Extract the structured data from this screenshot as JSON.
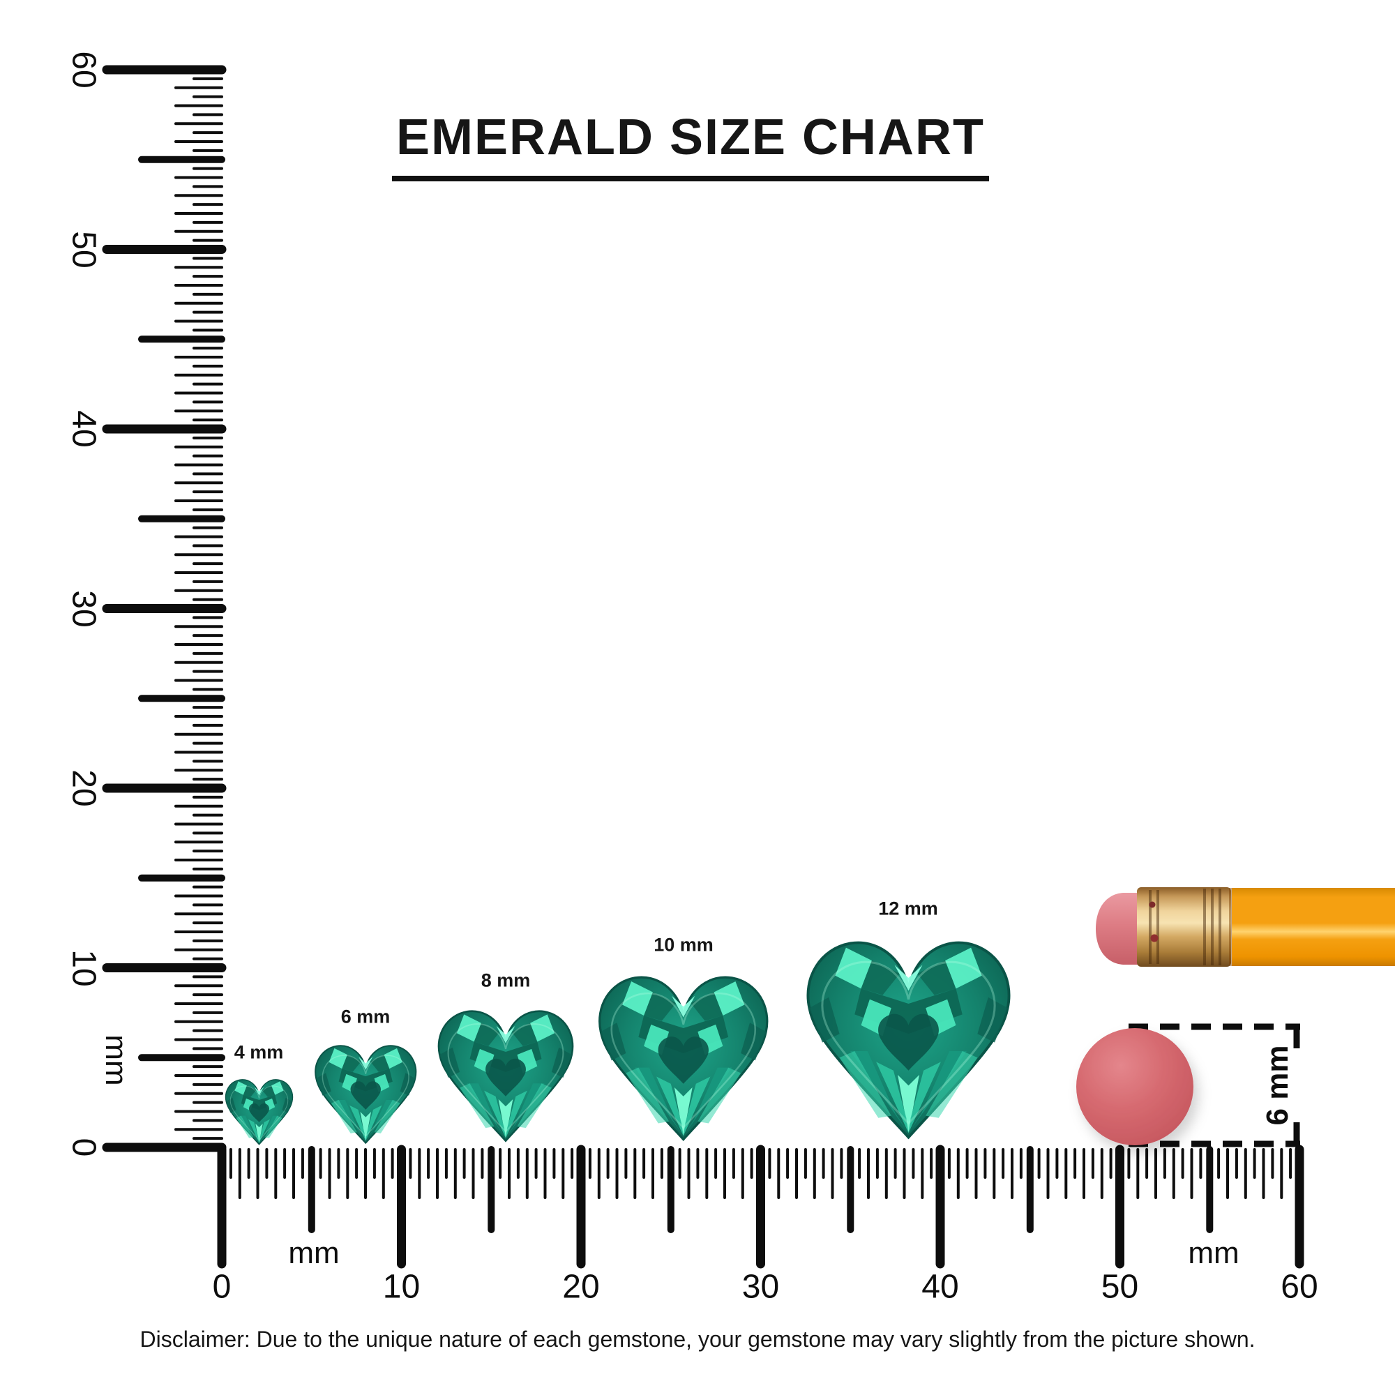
{
  "title": "EMERALD SIZE CHART",
  "vertical_ruler": {
    "unit": "mm",
    "numbers": [
      "0",
      "10",
      "20",
      "30",
      "40",
      "50",
      "60"
    ]
  },
  "horizontal_ruler": {
    "unit_left": "mm",
    "unit_right": "mm",
    "numbers": [
      "0",
      "10",
      "20",
      "30",
      "40",
      "50",
      "60"
    ]
  },
  "gems": [
    {
      "label": "4 mm",
      "size_mm": 4
    },
    {
      "label": "6 mm",
      "size_mm": 6
    },
    {
      "label": "8 mm",
      "size_mm": 8
    },
    {
      "label": "10 mm",
      "size_mm": 10
    },
    {
      "label": "12 mm",
      "size_mm": 12
    }
  ],
  "reference": {
    "eraser_dot_label": "6 mm"
  },
  "disclaimer": "Disclaimer: Due to the unique nature of each gemstone, your gemstone may vary slightly from the picture shown.",
  "colors": {
    "ink": "#111111",
    "gem_base": "#14826c",
    "gem_dark": "#0b5e4e",
    "gem_light": "#49e6bb",
    "gem_bright": "#8dffe0",
    "pencil_body": "#f5a011",
    "pencil_highlight": "#ffd36e",
    "ferrule_gold": "#e9bf7f",
    "eraser_pink": "#dd7c84",
    "dot_pink": "#d5646a"
  }
}
